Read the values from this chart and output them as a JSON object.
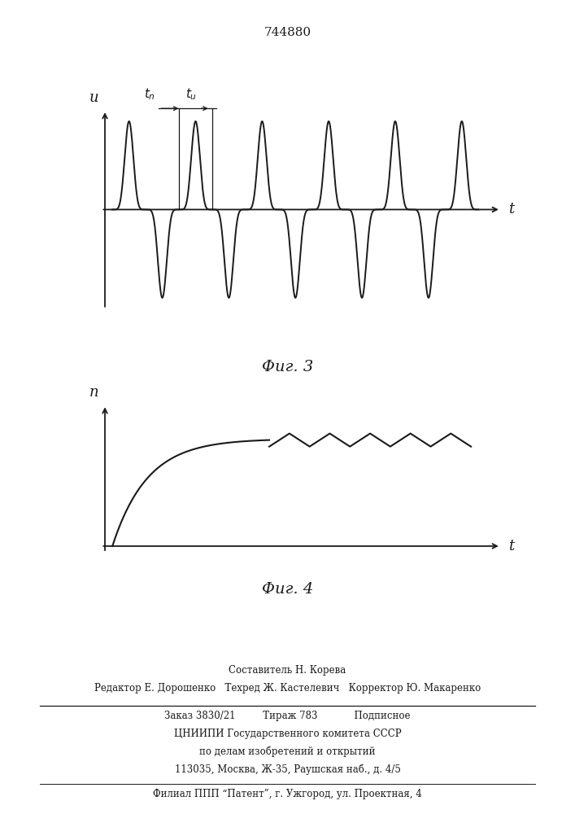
{
  "bg_color": "#ffffff",
  "patent_number": "744880",
  "fig3_title": "Φиг. 3",
  "fig4_title": "Φиг. 4",
  "fig3_ylabel": "u",
  "fig3_xlabel": "t",
  "fig4_ylabel": "n",
  "fig4_xlabel": "t",
  "footer_line1": "Составитель Н. Корева",
  "footer_line2": "Редактор Е. Дорошенко   Техред Ж. Кастелевич   Корректор Ю. Макаренко",
  "footer_line3": "Заказ 3830/21         Тираж 783            Подписное",
  "footer_line4": "ЦНИИПИ Государственного комитета СССР",
  "footer_line5": "по делам изобретений и открытий",
  "footer_line6": "113035, Москва, Ж-35, Раушская наб., д. 4/5",
  "footer_line7": "Филиал ППП “Патент”, г. Ужгород, ул. Проектная, 4",
  "line_color": "#1a1a1a",
  "annotation_color": "#1a1a1a"
}
